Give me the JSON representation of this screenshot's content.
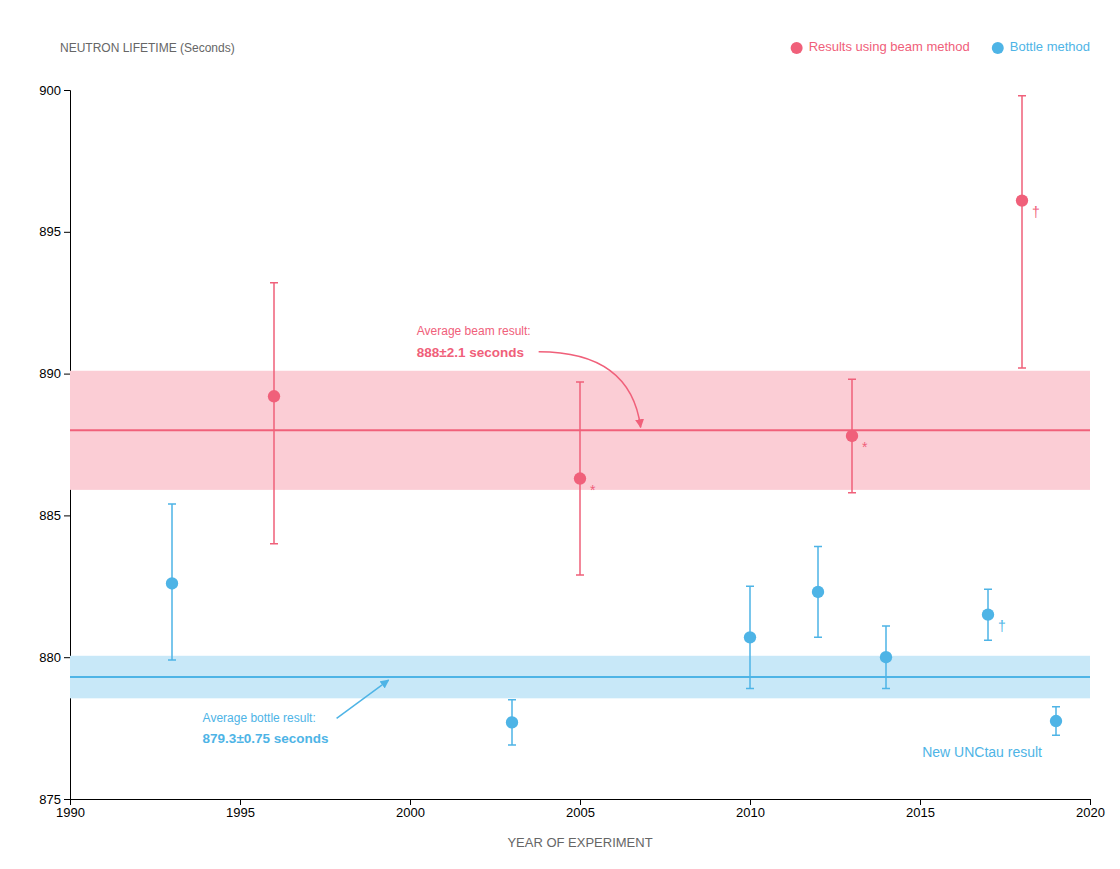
{
  "chart_data": {
    "type": "scatter",
    "xlabel": "YEAR OF EXPERIMENT",
    "ylabel": "NEUTRON LIFETIME (Seconds)",
    "xlim": [
      1990,
      2020
    ],
    "ylim": [
      875,
      900
    ],
    "xticks": [
      1990,
      1995,
      2000,
      2005,
      2010,
      2015,
      2020
    ],
    "yticks": [
      875,
      880,
      885,
      890,
      895,
      900
    ],
    "grid": false,
    "legend": "upper right",
    "series": [
      {
        "name": "Results using beam method",
        "color": "#F0607A",
        "band_color": "#FBCDD5",
        "marker": "circle",
        "x": [
          1996,
          2005,
          2013,
          2018
        ],
        "values": [
          889.2,
          886.3,
          887.8,
          896.1
        ],
        "error_up": [
          4.0,
          3.4,
          2.0,
          3.7
        ],
        "error_down": [
          5.2,
          3.4,
          2.0,
          5.9
        ],
        "point_labels": [
          null,
          "*",
          "*",
          "†"
        ],
        "average": 888.0,
        "average_error": 2.1,
        "average_label": "Average beam result:",
        "average_value_label": "888±2.1 seconds"
      },
      {
        "name": "Bottle method",
        "color": "#4EB4E6",
        "band_color": "#C8E8F8",
        "marker": "circle",
        "x": [
          1993,
          2003,
          2010,
          2012,
          2014,
          2017,
          2019
        ],
        "values": [
          882.6,
          877.7,
          880.7,
          882.3,
          880.0,
          881.5,
          877.75
        ],
        "error_up": [
          2.8,
          0.8,
          1.8,
          1.6,
          1.1,
          0.9,
          0.5
        ],
        "error_down": [
          2.7,
          0.8,
          1.8,
          1.6,
          1.1,
          0.9,
          0.5
        ],
        "point_labels": [
          null,
          null,
          null,
          null,
          null,
          "†",
          null
        ],
        "average": 879.3,
        "average_error": 0.75,
        "average_label": "Average bottle result:",
        "average_value_label": "879.3±0.75 seconds"
      }
    ],
    "annotations": [
      "New UNCtau result"
    ]
  }
}
